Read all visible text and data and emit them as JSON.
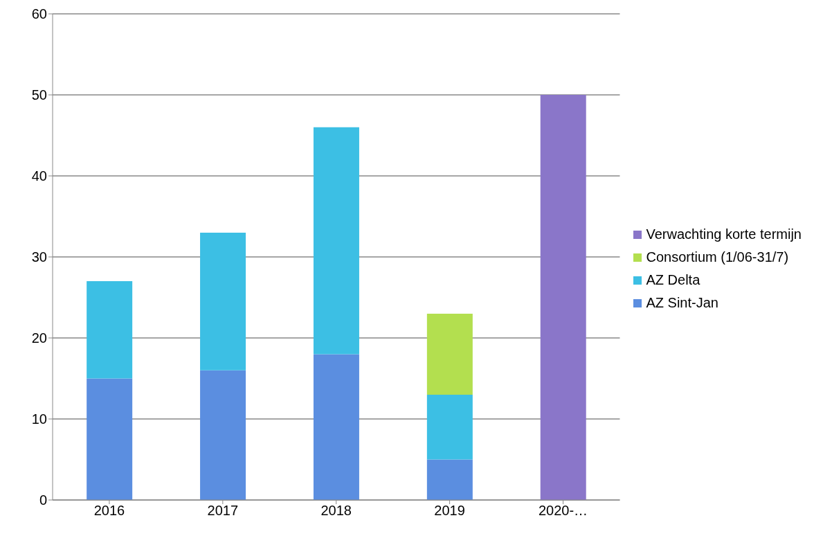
{
  "chart_data": {
    "type": "bar",
    "stacked": true,
    "categories": [
      "2016",
      "2017",
      "2018",
      "2019",
      "2020-…"
    ],
    "series": [
      {
        "name": "AZ Sint-Jan",
        "color": "#5b8ee0",
        "values": [
          15,
          16,
          18,
          5,
          null
        ]
      },
      {
        "name": "AZ Delta",
        "color": "#3cbfe4",
        "values": [
          12,
          17,
          28,
          8,
          null
        ]
      },
      {
        "name": "Consortium (1/06-31/7)",
        "color": "#b3df4f",
        "values": [
          null,
          null,
          null,
          10,
          null
        ]
      },
      {
        "name": "Verwachting korte termijn",
        "color": "#8a76c9",
        "values": [
          null,
          null,
          null,
          null,
          50
        ]
      }
    ],
    "ylim": [
      0,
      60
    ],
    "yticks": [
      0,
      10,
      20,
      30,
      40,
      50,
      60
    ],
    "grid": "y",
    "legend": "right"
  }
}
